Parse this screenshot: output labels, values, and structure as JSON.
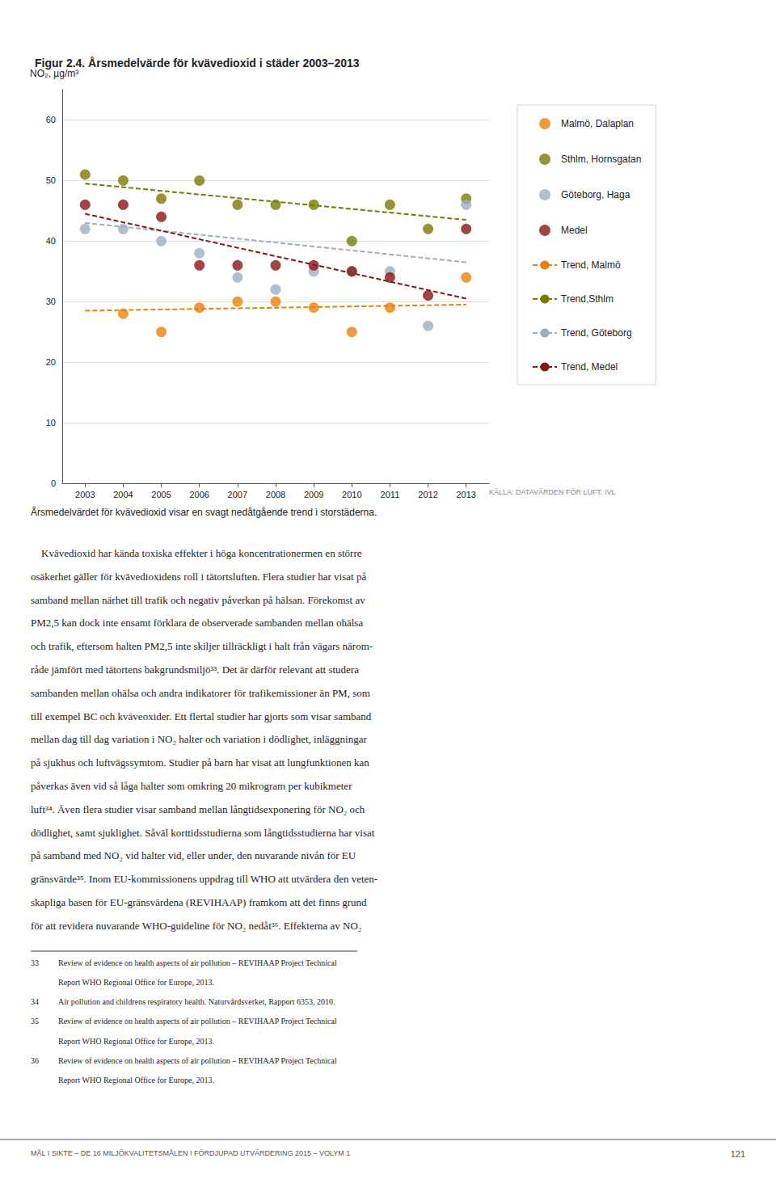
{
  "chart_data": {
    "type": "scatter",
    "title": "Figur 2.4. Årsmedelvärde för kvävedioxid i städer 2003–2013",
    "ylabel": "NO₂, µg/m³",
    "x": [
      2003,
      2004,
      2005,
      2006,
      2007,
      2008,
      2009,
      2010,
      2011,
      2012,
      2013
    ],
    "series": [
      {
        "name": "Malmö, Dalaplan",
        "type": "scatter",
        "marker": "circle",
        "color": "#E8820A",
        "values": [
          null,
          28,
          25,
          29,
          30,
          30,
          29,
          25,
          29,
          null,
          34
        ]
      },
      {
        "name": "Sthlm, Hornsgatan",
        "type": "scatter",
        "marker": "circle",
        "color": "#7A7A00",
        "values": [
          51,
          50,
          47,
          50,
          46,
          46,
          46,
          40,
          46,
          42,
          47
        ]
      },
      {
        "name": "Göteborg, Haga",
        "type": "scatter",
        "marker": "circle",
        "color": "#9AAFC0",
        "values": [
          42,
          42,
          40,
          38,
          34,
          32,
          35,
          35,
          35,
          26,
          46
        ]
      },
      {
        "name": "Medel",
        "type": "scatter",
        "marker": "circle",
        "color": "#8B1515",
        "values": [
          46,
          46,
          44,
          36,
          36,
          36,
          36,
          35,
          34,
          31,
          42
        ]
      },
      {
        "name": "Trend, Malmö",
        "type": "line",
        "line_style": "dashed",
        "color": "#E8820A",
        "x": [
          2003,
          2013
        ],
        "values": [
          28.5,
          29.5
        ]
      },
      {
        "name": "Trend,Sthlm",
        "type": "line",
        "line_style": "dashed",
        "color": "#7A7A00",
        "x": [
          2003,
          2013
        ],
        "values": [
          49.5,
          43.5
        ]
      },
      {
        "name": "Trend, Göteborg",
        "type": "line",
        "line_style": "dashed",
        "color": "#9AAFC0",
        "x": [
          2003,
          2013
        ],
        "values": [
          43.0,
          36.5
        ]
      },
      {
        "name": "Trend, Medel",
        "type": "line",
        "line_style": "dashed",
        "color": "#8B1515",
        "x": [
          2003,
          2013
        ],
        "values": [
          44.5,
          30.5
        ]
      }
    ],
    "xlim": [
      2002.4,
      2013.6
    ],
    "xticks": [
      2003,
      2004,
      2005,
      2006,
      2007,
      2008,
      2009,
      2010,
      2011,
      2012,
      2013
    ],
    "ylim": [
      0,
      65
    ],
    "yticks": [
      0,
      10,
      20,
      30,
      40,
      50,
      60
    ],
    "grid": true,
    "legend": "right",
    "source": "KÄLLA: DATAVÄRDEN FÖR LUFT, IVL",
    "caption": "Årsmedelvärdet för kvävedioxid visar en svagt nedåtgående trend i storstäderna.",
    "body": [
      "    Kvävedioxid har kända toxiska effekter i höga koncentrationermen en större",
      "osäkerhet gäller för kvävedioxidens roll i tätortsluften. Flera studier har visat på",
      "samband mellan närhet till trafik och negativ påverkan på hälsan. Förekomst av",
      "PM2,5 kan dock inte ensamt förklara de observerade sambanden mellan ohälsa",
      "och trafik, eftersom halten PM2,5 inte skiljer tillräckligt i halt från vägars närom-",
      "råde jämfört med tätortens bakgrundsmiljö³³. Det är därför relevant att studera",
      "sambanden mellan ohälsa och andra indikatorer för trafikemissioner än PM, som",
      "till exempel BC och kväveoxider. Ett flertal studier har gjorts som visar samband",
      "mellan dag till dag variation i NO₂ halter och variation i dödlighet, inläggningar",
      "på sjukhus och luftvägssymtom. Studier på barn har visat att lungfunktionen kan",
      "påverkas även vid så låga halter som omkring 20 mikrogram per kubikmeter",
      "luft³⁴. Även flera studier visar samband mellan långtidsexponering för NO₂ och",
      "dödlighet, samt sjuklighet. Såväl korttidsstudierna som långtidsstudierna har visat",
      "på samband med NO₂ vid halter vid, eller under, den nuvarande nivån för EU",
      "gränsvärde³⁵. Inom EU-kommissionens uppdrag till WHO att utvärdera den veten-",
      "skapliga basen för EU-gränsvärdena (REVIHAAP) framkom att det finns grund",
      "för att revidera nuvarande WHO-guideline för NO₂ nedåt³⁶. Effekterna av NO₂"
    ],
    "footnotes": [
      {
        "number": "33",
        "lines": [
          "Review of evidence on health aspects of air pollution – REVIHAAP Project Technical",
          "Report WHO Regional Office for Europe, 2013."
        ]
      },
      {
        "number": "34",
        "lines": [
          "Air pollution and childrens respiratory health. Naturvårdsverket, Rapport 6353, 2010."
        ]
      },
      {
        "number": "35",
        "lines": [
          "Review of evidence on health aspects of air pollution – REVIHAAP Project Technical",
          "Report WHO Regional Office for Europe, 2013."
        ]
      },
      {
        "number": "36",
        "lines": [
          "Review of evidence on health aspects of air pollution – REVIHAAP Project Technical",
          "Report WHO Regional Office for Europe, 2013."
        ]
      }
    ],
    "footer": "MÅL I SIKTE – DE 16 MILJÖKVALITETSMÅLEN I FÖRDJUPAD UTVÄRDERING 2015 – VOLYM 1",
    "page_number": "121"
  }
}
